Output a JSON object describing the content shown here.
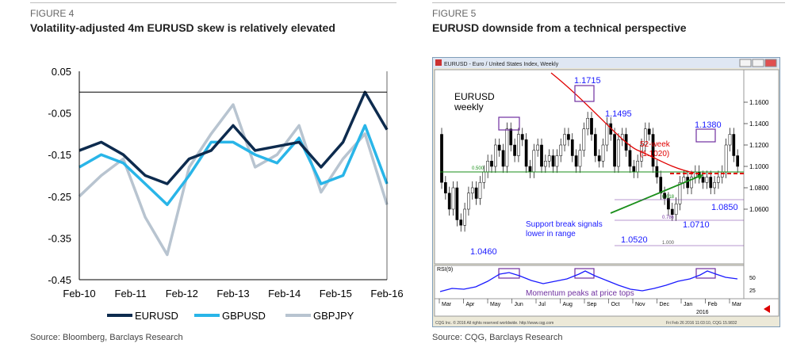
{
  "left": {
    "figure_label": "FIGURE 4",
    "title": "Volatility-adjusted 4m EURUSD skew is relatively elevated",
    "source": "Source: Bloomberg, Barclays Research"
  },
  "right": {
    "figure_label": "FIGURE 5",
    "title": "EURUSD downside from a technical perspective",
    "source": "Source: CQG, Barclays Research",
    "window_title": "EURUSD - Euro / United States Index, Weekly",
    "chart_label_line1": "EURUSD",
    "chart_label_line2": "weekly",
    "ann_1715": "1.1715",
    "ann_1495": "1.1495",
    "ann_1380": "1.1380",
    "ann_52w_line1": "52-week",
    "ann_52w_line2": "(1.1020)",
    "ann_support_line1": "Support break signals",
    "ann_support_line2": "lower in range",
    "ann_1460": "1.0460",
    "ann_1520": "1.0520",
    "ann_1710": "1.0710",
    "ann_1850": "1.0850",
    "fib_500": "0.500",
    "fib_618": "0.618",
    "fib_786": "0.786",
    "fib_1000": "1.000",
    "rsi_label": "RSI(9)",
    "momentum_label": "Momentum peaks at price tops",
    "price_ticks": [
      "1.1600",
      "1.1400",
      "1.1200",
      "1.1000",
      "1.0800",
      "1.0600"
    ],
    "rsi_ticks": [
      "50",
      "25"
    ],
    "months": [
      "Mar",
      "Apr",
      "May",
      "Jun",
      "Jul",
      "Aug",
      "Sep",
      "Oct",
      "Nov",
      "Dec",
      "Jan",
      "Feb",
      "Mar"
    ],
    "year_label": "2016",
    "footer_left": "CQG Inc. © 2016 All rights reserved worldwide. http://www.cqg.com",
    "footer_right": "Fri Feb 26 2016 11:03:10, CQG 15.9832",
    "colors": {
      "up": "#ffffff",
      "down": "#000000",
      "ann_blue": "#1a1aff",
      "ann_red": "#e00000",
      "green": "#1a8f1a",
      "purple": "#7030a0"
    }
  },
  "chart_data": [
    {
      "type": "line",
      "title": "Volatility-adjusted 4m EURUSD skew is relatively elevated",
      "xlabel": "",
      "ylabel": "",
      "x_ticks": [
        "Feb-10",
        "Feb-11",
        "Feb-12",
        "Feb-13",
        "Feb-14",
        "Feb-15",
        "Feb-16"
      ],
      "y_ticks": [
        "0.05",
        "-0.05",
        "-0.15",
        "-0.25",
        "-0.35",
        "-0.45"
      ],
      "ylim": [
        -0.45,
        0.05
      ],
      "grid": false,
      "legend_position": "bottom",
      "x": [
        "Feb-10",
        "Aug-10",
        "Feb-11",
        "Aug-11",
        "Nov-11",
        "Feb-12",
        "Aug-12",
        "Feb-13",
        "Aug-13",
        "Feb-14",
        "Aug-14",
        "Feb-15",
        "Aug-15",
        "Jan-16",
        "Feb-16"
      ],
      "series": [
        {
          "name": "EURUSD",
          "color": "#0d2b4e",
          "values": [
            -0.14,
            -0.12,
            -0.15,
            -0.2,
            -0.22,
            -0.16,
            -0.14,
            -0.08,
            -0.14,
            -0.13,
            -0.12,
            -0.18,
            -0.12,
            0.0,
            -0.09
          ]
        },
        {
          "name": "GBPUSD",
          "color": "#29b5e8",
          "values": [
            -0.18,
            -0.15,
            -0.17,
            -0.22,
            -0.27,
            -0.2,
            -0.12,
            -0.12,
            -0.15,
            -0.17,
            -0.11,
            -0.22,
            -0.2,
            -0.08,
            -0.22
          ]
        },
        {
          "name": "GBPJPY",
          "color": "#b8c4d0",
          "values": [
            -0.25,
            -0.2,
            -0.16,
            -0.3,
            -0.39,
            -0.18,
            -0.1,
            -0.03,
            -0.18,
            -0.15,
            -0.08,
            -0.24,
            -0.16,
            -0.1,
            -0.27
          ]
        }
      ]
    }
  ]
}
